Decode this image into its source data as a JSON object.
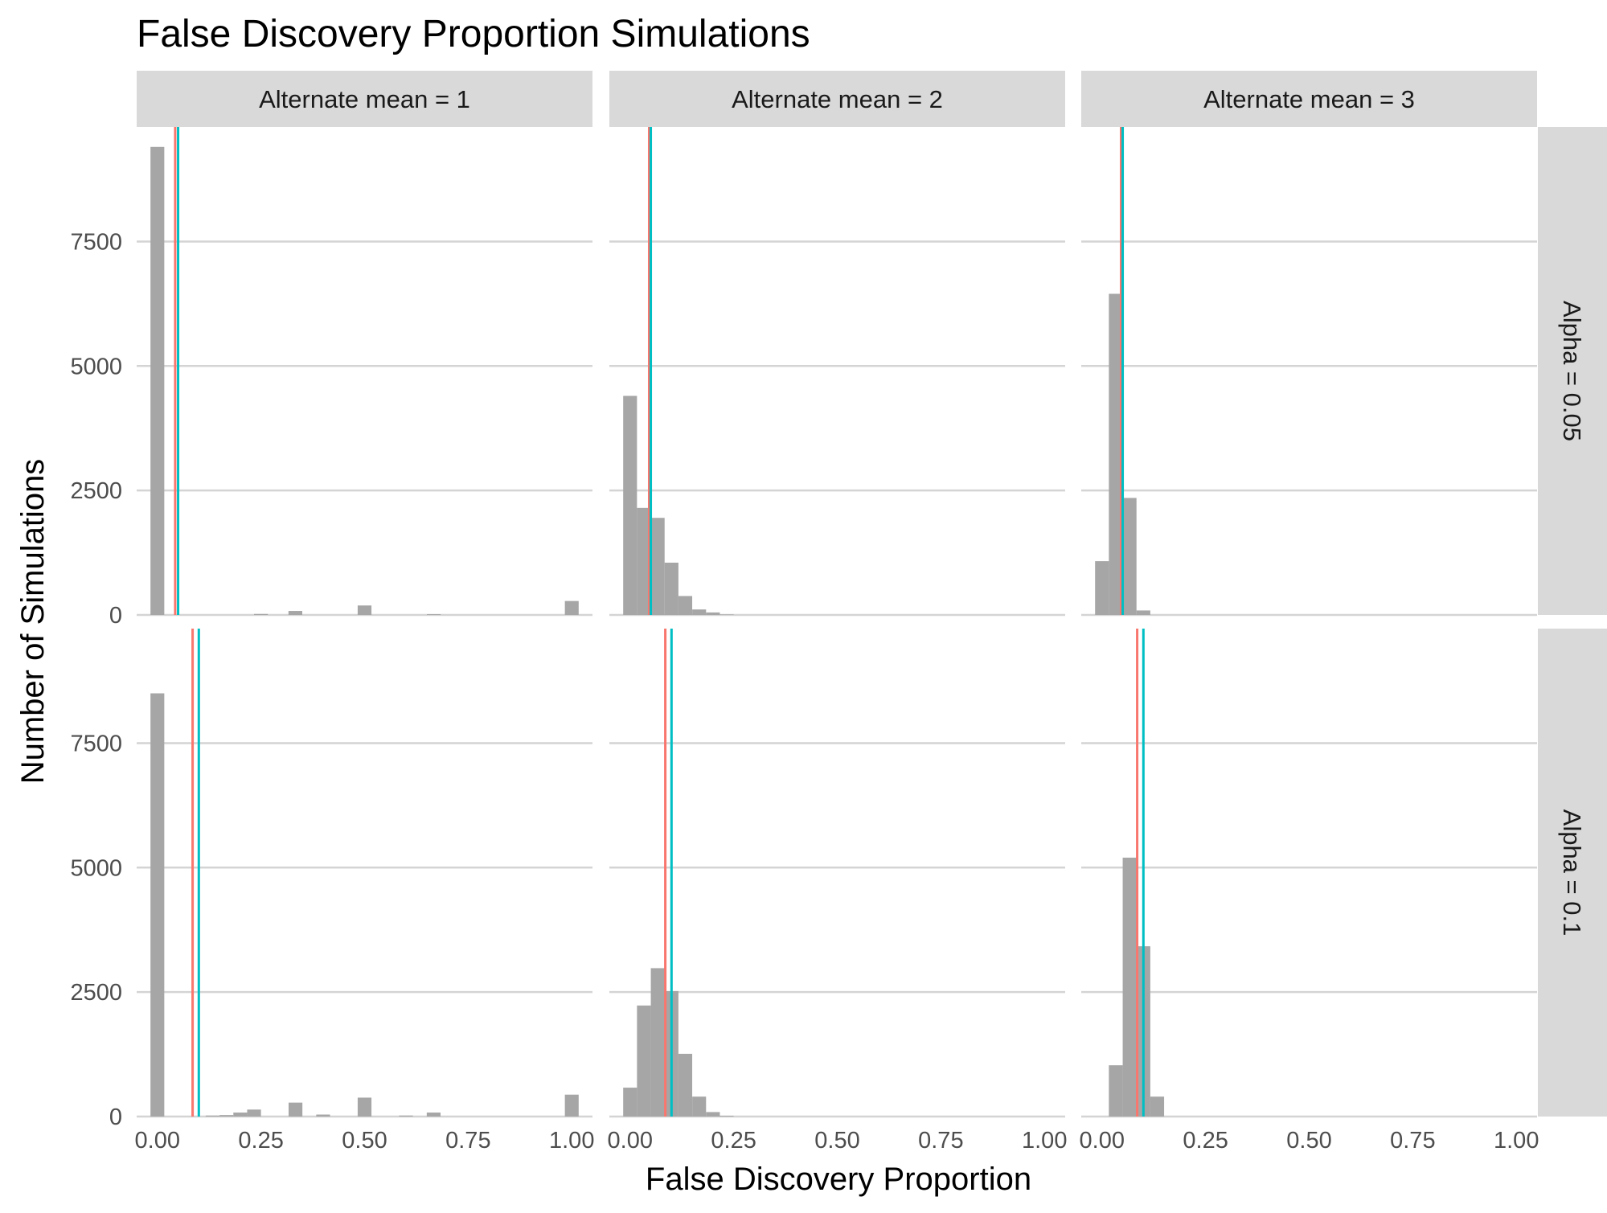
{
  "chart_data": {
    "type": "bar",
    "title": "False Discovery Proportion Simulations",
    "xlabel": "False Discovery Proportion",
    "ylabel": "Number of Simulations",
    "xlim": [
      -0.05,
      1.05
    ],
    "ylim": [
      0,
      9800
    ],
    "x_ticks": [
      "0.00",
      "0.25",
      "0.50",
      "0.75",
      "1.00"
    ],
    "x_tick_values": [
      0,
      0.25,
      0.5,
      0.75,
      1.0
    ],
    "y_ticks": [
      "0",
      "2500",
      "5000",
      "7500"
    ],
    "y_tick_values": [
      0,
      2500,
      5000,
      7500
    ],
    "grid": "horizontal",
    "bar_color": "#a6a6a6",
    "bin_width": 0.0333,
    "line_colors": [
      "#f8766d",
      "#00bfc4"
    ],
    "columns": [
      {
        "label": "Alternate mean = 1"
      },
      {
        "label": "Alternate mean = 2"
      },
      {
        "label": "Alternate mean = 3"
      }
    ],
    "rows": [
      {
        "label": "Alpha = 0.05"
      },
      {
        "label": "Alpha = 0.1"
      }
    ],
    "panels": [
      {
        "row": 0,
        "col": 0,
        "bars": [
          [
            0.0,
            9400
          ],
          [
            0.25,
            20
          ],
          [
            0.333,
            80
          ],
          [
            0.5,
            190
          ],
          [
            0.667,
            15
          ],
          [
            1.0,
            280
          ]
        ],
        "vlines": [
          0.043,
          0.05
        ]
      },
      {
        "row": 0,
        "col": 1,
        "bars": [
          [
            0.0,
            4400
          ],
          [
            0.0333,
            2150
          ],
          [
            0.0667,
            1950
          ],
          [
            0.1,
            1050
          ],
          [
            0.1333,
            380
          ],
          [
            0.1667,
            110
          ],
          [
            0.2,
            50
          ],
          [
            0.2333,
            10
          ]
        ],
        "vlines": [
          0.046,
          0.05
        ]
      },
      {
        "row": 0,
        "col": 2,
        "bars": [
          [
            0.0,
            1080
          ],
          [
            0.0333,
            6450
          ],
          [
            0.0667,
            2350
          ],
          [
            0.1,
            90
          ]
        ],
        "vlines": [
          0.046,
          0.05
        ]
      },
      {
        "row": 1,
        "col": 0,
        "bars": [
          [
            0.0,
            8500
          ],
          [
            0.1333,
            20
          ],
          [
            0.1667,
            30
          ],
          [
            0.2,
            80
          ],
          [
            0.2333,
            140
          ],
          [
            0.3333,
            280
          ],
          [
            0.4,
            40
          ],
          [
            0.5,
            380
          ],
          [
            0.6,
            20
          ],
          [
            0.6667,
            80
          ],
          [
            1.0,
            440
          ]
        ],
        "vlines": [
          0.085,
          0.1
        ]
      },
      {
        "row": 1,
        "col": 1,
        "bars": [
          [
            0.0,
            580
          ],
          [
            0.0333,
            2230
          ],
          [
            0.0667,
            2980
          ],
          [
            0.1,
            2520
          ],
          [
            0.1333,
            1260
          ],
          [
            0.1667,
            400
          ],
          [
            0.2,
            90
          ],
          [
            0.2333,
            15
          ]
        ],
        "vlines": [
          0.085,
          0.1
        ]
      },
      {
        "row": 1,
        "col": 2,
        "bars": [
          [
            0.0333,
            1030
          ],
          [
            0.0667,
            5200
          ],
          [
            0.1,
            3420
          ],
          [
            0.1333,
            400
          ]
        ],
        "vlines": [
          0.085,
          0.1
        ]
      }
    ]
  }
}
